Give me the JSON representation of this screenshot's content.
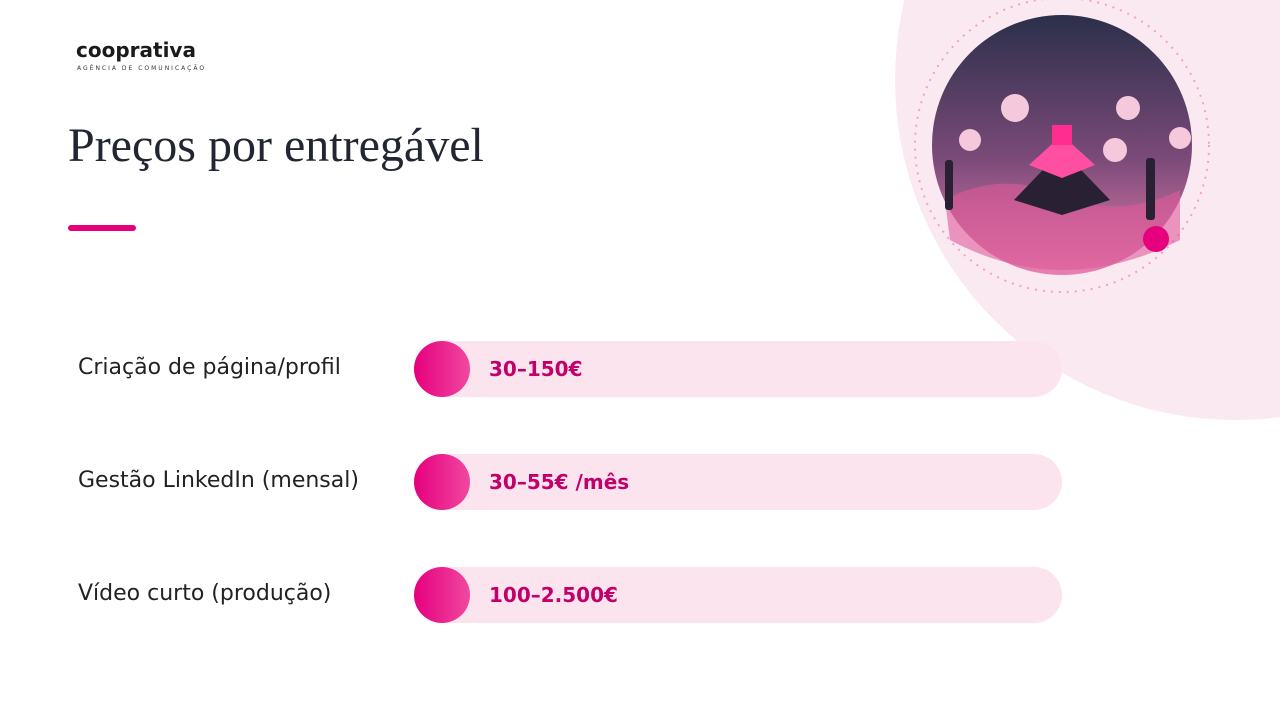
{
  "logo": {
    "name": "cooprativa",
    "tagline": "AGÊNCIA DE COMUNICAÇÃO"
  },
  "title": "Preços por entregável",
  "rows": [
    {
      "label": "Criação de página/profil",
      "price": "30–150€"
    },
    {
      "label": "Gestão LinkedIn (mensal)",
      "price": "30–55€ /mês"
    },
    {
      "label": "Vídeo curto (produção)",
      "price": "100–2.500€"
    }
  ]
}
